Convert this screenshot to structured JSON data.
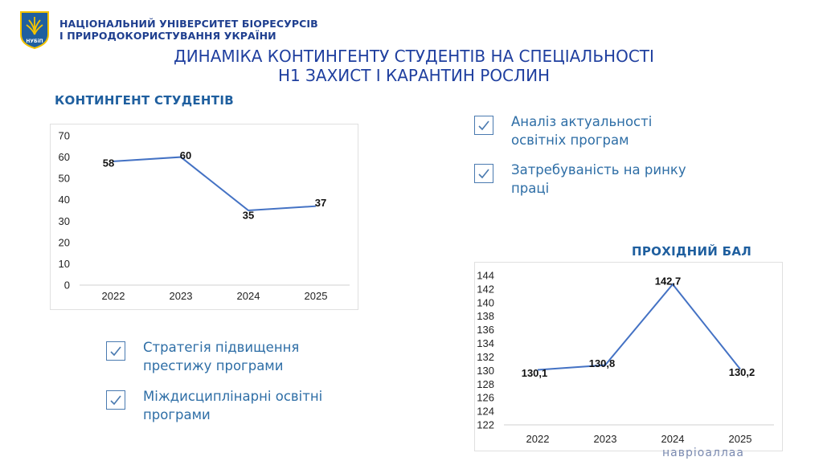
{
  "header": {
    "university_line1": "НАЦІОНАЛЬНИЙ УНІВЕРСИТЕТ БІОРЕСУРСІВ",
    "university_line2": "І ПРИРОДОКОРИСТУВАННЯ УКРАЇНИ",
    "logo_text": "НУБіП"
  },
  "title": {
    "line1": "ДИНАМІКА КОНТИНГЕНТУ СТУДЕНТІВ НА СПЕЦІАЛЬНОСТІ",
    "line2": "Н1 ЗАХИСТ І КАРАНТИН РОСЛИН"
  },
  "left_section_title": "КОНТИНГЕНТ СТУДЕНТІВ",
  "right_section_title": "ПРОХІДНИЙ БАЛ",
  "checklist": [
    {
      "line1": "Аналіз актуальності",
      "line2": "освітніх програм"
    },
    {
      "line1": "Затребуваність на ринку",
      "line2": "праці"
    },
    {
      "line1": "Стратегія підвищення",
      "line2": "престижу програми"
    },
    {
      "line1": "Міждисциплінарні освітні",
      "line2": "програми"
    }
  ],
  "background_fragment": "навріоаллаа",
  "colors": {
    "line": "#4472c4",
    "accent": "#1f3f9f",
    "check": "#4a7ab0"
  },
  "chart_data": [
    {
      "type": "line",
      "title": "",
      "categories": [
        "2022",
        "2023",
        "2024",
        "2025"
      ],
      "values": [
        58,
        60,
        35,
        37
      ],
      "labels": [
        "58",
        "60",
        "35",
        "37"
      ],
      "ylim": [
        0,
        70
      ],
      "yticks": [
        "0",
        "10",
        "20",
        "30",
        "40",
        "50",
        "60",
        "70"
      ],
      "grid": false
    },
    {
      "type": "line",
      "title": "",
      "categories": [
        "2022",
        "2023",
        "2024",
        "2025"
      ],
      "values": [
        130.1,
        130.8,
        142.7,
        130.2
      ],
      "labels": [
        "130,1",
        "130,8",
        "142,7",
        "130,2"
      ],
      "ylim": [
        122,
        144
      ],
      "yticks": [
        "122",
        "124",
        "126",
        "128",
        "130",
        "132",
        "134",
        "136",
        "138",
        "140",
        "142",
        "144"
      ],
      "grid": false
    }
  ]
}
